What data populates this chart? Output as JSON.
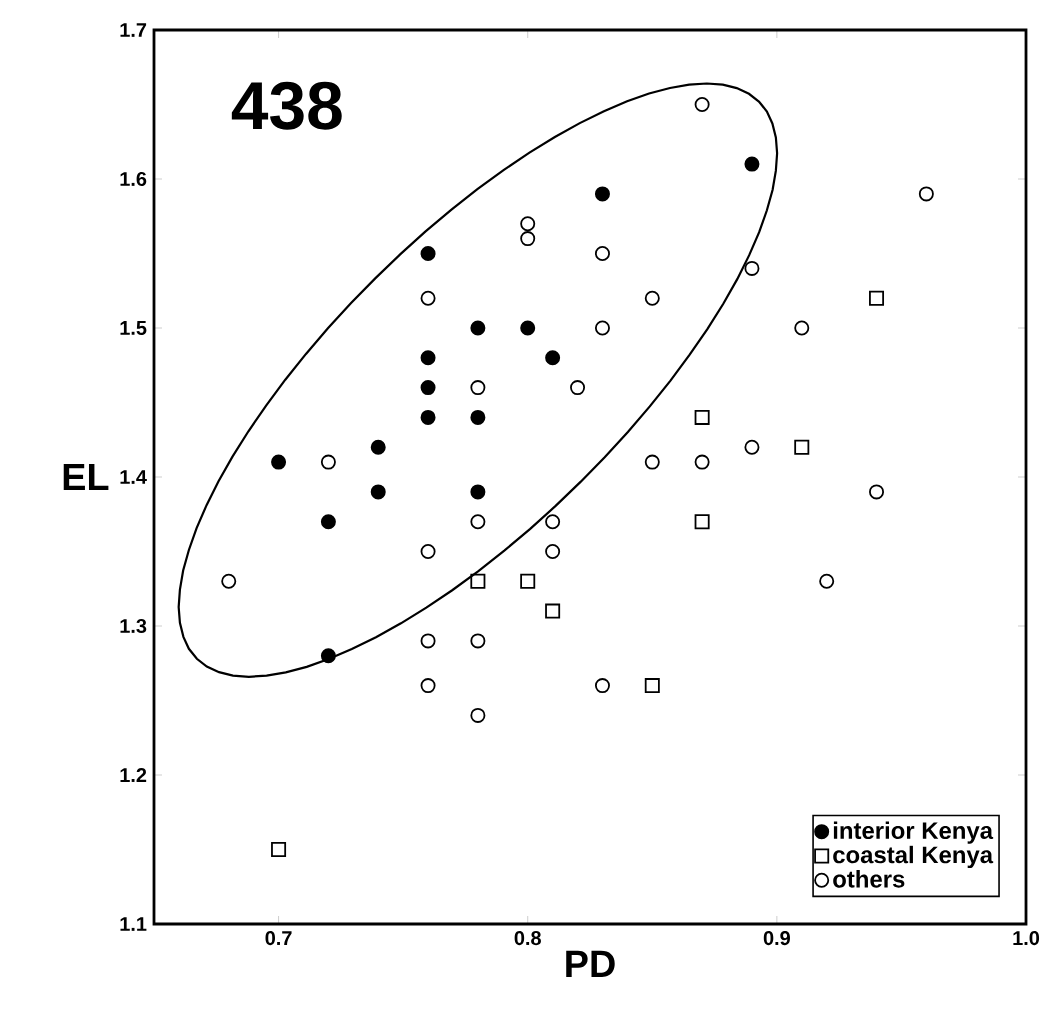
{
  "chart_data": {
    "type": "scatter",
    "title": "438",
    "xlabel": "PD",
    "ylabel": "EL",
    "xlim": [
      0.65,
      1.0
    ],
    "ylim": [
      1.1,
      1.7
    ],
    "xticks": [
      0.7,
      0.8,
      0.9,
      {
        "value": 1.0,
        "label": "1.0"
      }
    ],
    "yticks": [
      1.1,
      1.2,
      1.3,
      1.4,
      1.5,
      1.6,
      1.7
    ],
    "grid": false,
    "legend": "bottom right",
    "series": [
      {
        "name": "interior Kenya",
        "color": "#000000",
        "marker": "circle",
        "x": [
          0.7,
          0.72,
          0.72,
          0.74,
          0.74,
          0.76,
          0.76,
          0.76,
          0.76,
          0.78,
          0.78,
          0.78,
          0.8,
          0.81,
          0.83,
          0.89
        ],
        "values": [
          1.41,
          1.37,
          1.28,
          1.42,
          1.39,
          1.55,
          1.48,
          1.46,
          1.44,
          1.5,
          1.44,
          1.39,
          1.5,
          1.48,
          1.59,
          1.61
        ]
      },
      {
        "name": "coastal Kenya",
        "color": "#ffffff",
        "marker": "square",
        "x": [
          0.7,
          0.78,
          0.8,
          0.81,
          0.87,
          0.91,
          0.94,
          0.87,
          0.85
        ],
        "values": [
          1.15,
          1.33,
          1.33,
          1.31,
          1.44,
          1.42,
          1.52,
          1.37,
          1.26
        ]
      },
      {
        "name": "others",
        "color": "#ffffff",
        "marker": "circle",
        "x": [
          0.72,
          0.76,
          0.8,
          0.8,
          0.78,
          0.82,
          0.87,
          0.96,
          0.83,
          0.89,
          0.85,
          0.83,
          0.91,
          0.89,
          0.85,
          0.87,
          0.94,
          0.92,
          0.83,
          0.68,
          0.76,
          0.78,
          0.81,
          0.81,
          0.76,
          0.78,
          0.76,
          0.78
        ],
        "values": [
          1.41,
          1.52,
          1.57,
          1.56,
          1.46,
          1.46,
          1.65,
          1.59,
          1.55,
          1.54,
          1.52,
          1.5,
          1.5,
          1.42,
          1.41,
          1.41,
          1.39,
          1.33,
          1.26,
          1.33,
          1.35,
          1.37,
          1.37,
          1.35,
          1.29,
          1.29,
          1.26,
          1.24
        ]
      }
    ]
  }
}
